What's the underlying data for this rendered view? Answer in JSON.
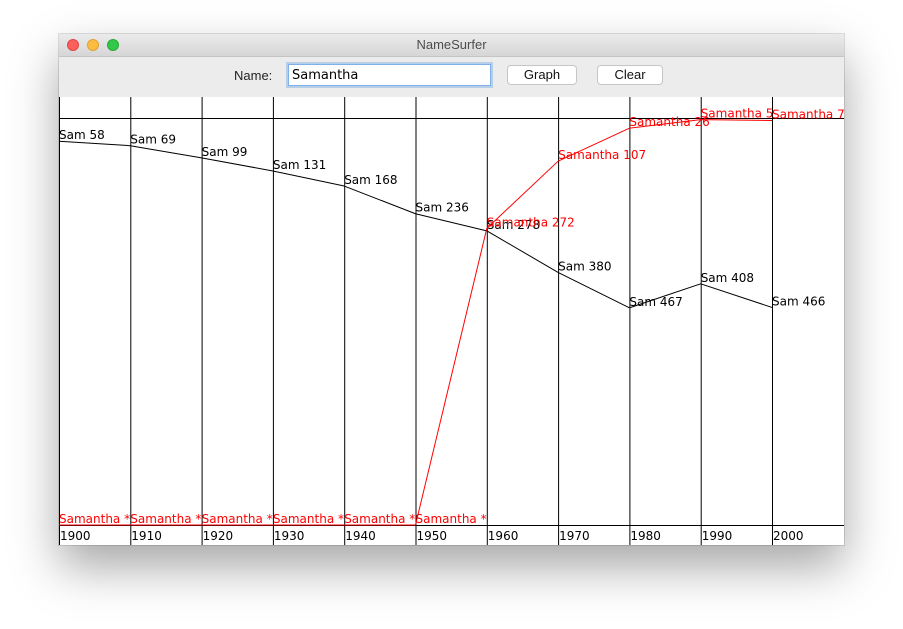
{
  "window": {
    "title": "NameSurfer"
  },
  "controls": {
    "name_label": "Name:",
    "name_value": "Samantha",
    "graph_label": "Graph",
    "clear_label": "Clear"
  },
  "colors": {
    "sam": "#000000",
    "samantha": "#ff0000"
  },
  "chart_data": {
    "type": "line",
    "x": [
      1900,
      1910,
      1920,
      1930,
      1940,
      1950,
      1960,
      1970,
      1980,
      1990,
      2000
    ],
    "y_scale": "popularity rank (1 at top, 1000 at bottom; 0 = not ranked)",
    "ylim": [
      1,
      1000
    ],
    "series": [
      {
        "name": "Sam",
        "color": "#000000",
        "ranks": [
          58,
          69,
          99,
          131,
          168,
          236,
          278,
          380,
          467,
          408,
          466
        ],
        "labels": [
          "Sam 58",
          "Sam 69",
          "Sam 99",
          "Sam 131",
          "Sam 168",
          "Sam 236",
          "Sam 278",
          "Sam 380",
          "Sam 467",
          "Sam 408",
          "Sam 466"
        ]
      },
      {
        "name": "Samantha",
        "color": "#ff0000",
        "ranks": [
          0,
          0,
          0,
          0,
          0,
          0,
          272,
          107,
          26,
          5,
          7
        ],
        "labels": [
          "Samantha *",
          "Samantha *",
          "Samantha *",
          "Samantha *",
          "Samantha *",
          "Samantha *",
          "Samantha 272",
          "Samantha 107",
          "Samantha 26",
          "Samantha 5",
          "Samantha 7"
        ]
      }
    ],
    "decade_labels": [
      "1900",
      "1910",
      "1920",
      "1930",
      "1940",
      "1950",
      "1960",
      "1970",
      "1980",
      "1990",
      "2000"
    ]
  }
}
